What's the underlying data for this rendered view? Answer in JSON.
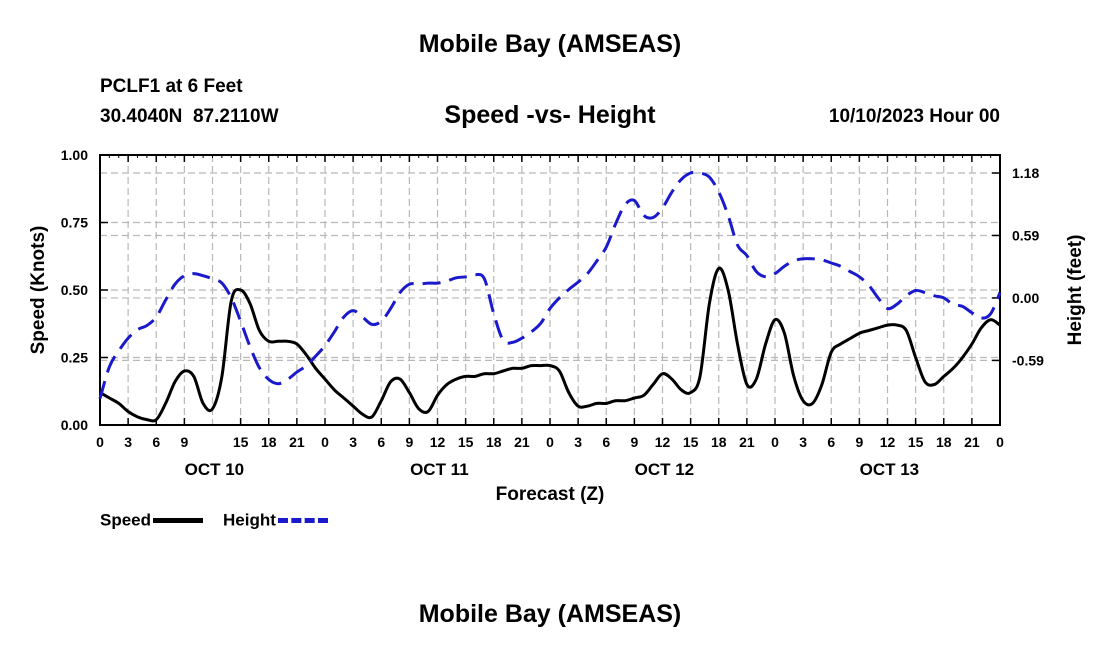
{
  "header": {
    "title": "Mobile Bay (AMSEAS)",
    "station": "PCLF1 at 6 Feet",
    "coords": "30.4040N  87.2110W",
    "subtitle": "Speed -vs- Height",
    "date": "10/10/2023 Hour 00"
  },
  "footer": {
    "title": "Mobile Bay (AMSEAS)"
  },
  "legend": {
    "speed_label": "Speed",
    "height_label": "Height"
  },
  "chart_data": {
    "type": "line",
    "title": "Speed -vs- Height",
    "xlabel": "Forecast (Z)",
    "ylabel": "Speed (Knots)",
    "y2label": "Height (feet)",
    "xlim": [
      0,
      96
    ],
    "ylim": [
      0,
      1.0
    ],
    "y2lim": [
      -1.2,
      1.35
    ],
    "grid": true,
    "x_ticks": [
      0,
      3,
      6,
      9,
      12,
      15,
      18,
      21,
      24,
      27,
      30,
      33,
      36,
      39,
      42,
      45,
      48,
      51,
      54,
      57,
      60,
      63,
      66,
      69,
      72,
      75,
      78,
      81,
      84,
      87,
      90,
      93,
      96
    ],
    "x_tick_labels": [
      "0",
      "3",
      "6",
      "9",
      "15",
      "18",
      "21",
      "0",
      "3",
      "6",
      "9",
      "12",
      "15",
      "18",
      "21",
      "0",
      "3",
      "6",
      "9",
      "12",
      "15",
      "18",
      "21",
      "0",
      "3",
      "6",
      "9",
      "12",
      "15",
      "18",
      "21",
      "0"
    ],
    "x_tick_positions": [
      0,
      3,
      6,
      9,
      15,
      18,
      21,
      24,
      27,
      30,
      33,
      36,
      39,
      42,
      45,
      48,
      51,
      54,
      57,
      60,
      63,
      66,
      69,
      72,
      75,
      78,
      81,
      84,
      87,
      90,
      93,
      96
    ],
    "day_labels": [
      {
        "label": "OCT 10",
        "hour": 9
      },
      {
        "label": "OCT 11",
        "hour": 33
      },
      {
        "label": "OCT 12",
        "hour": 57
      },
      {
        "label": "OCT 13",
        "hour": 81
      }
    ],
    "y_ticks": [
      0,
      0.25,
      0.5,
      0.75,
      1.0
    ],
    "y_tick_labels": [
      "0.00",
      "0.25",
      "0.50",
      "0.75",
      "1.00"
    ],
    "y2_ticks": [
      1.18,
      0.59,
      0.0,
      -0.59
    ],
    "y2_tick_labels": [
      "1.18",
      "0.59",
      "0.00",
      "-0.59"
    ],
    "series": [
      {
        "name": "Speed",
        "axis": "left",
        "color": "#000000",
        "style": "solid",
        "x": [
          0,
          1,
          2,
          3,
          4,
          5,
          6,
          7,
          8,
          9,
          10,
          11,
          12,
          13,
          14,
          15,
          16,
          17,
          18,
          19,
          20,
          21,
          22,
          23,
          24,
          25,
          26,
          27,
          28,
          29,
          30,
          31,
          32,
          33,
          34,
          35,
          36,
          37,
          38,
          39,
          40,
          41,
          42,
          43,
          44,
          45,
          46,
          47,
          48,
          49,
          50,
          51,
          52,
          53,
          54,
          55,
          56,
          57,
          58,
          59,
          60,
          61,
          62,
          63,
          64,
          65,
          66,
          67,
          68,
          69,
          70,
          71,
          72,
          73,
          74,
          75,
          76,
          77,
          78,
          79,
          80,
          81,
          82,
          83,
          84,
          85,
          86,
          87,
          88,
          89,
          90,
          91,
          92,
          93,
          94,
          95,
          96
        ],
        "values": [
          0.12,
          0.1,
          0.08,
          0.05,
          0.03,
          0.02,
          0.02,
          0.08,
          0.16,
          0.2,
          0.18,
          0.08,
          0.06,
          0.18,
          0.46,
          0.5,
          0.45,
          0.35,
          0.31,
          0.31,
          0.31,
          0.3,
          0.26,
          0.21,
          0.17,
          0.13,
          0.1,
          0.07,
          0.04,
          0.03,
          0.09,
          0.16,
          0.17,
          0.12,
          0.06,
          0.05,
          0.11,
          0.15,
          0.17,
          0.18,
          0.18,
          0.19,
          0.19,
          0.2,
          0.21,
          0.21,
          0.22,
          0.22,
          0.22,
          0.2,
          0.12,
          0.07,
          0.07,
          0.08,
          0.08,
          0.09,
          0.09,
          0.1,
          0.11,
          0.15,
          0.19,
          0.17,
          0.13,
          0.12,
          0.18,
          0.45,
          0.58,
          0.5,
          0.3,
          0.15,
          0.17,
          0.3,
          0.39,
          0.34,
          0.18,
          0.09,
          0.08,
          0.15,
          0.27,
          0.3,
          0.32,
          0.34,
          0.35,
          0.36,
          0.37,
          0.37,
          0.35,
          0.25,
          0.16,
          0.15,
          0.18,
          0.21,
          0.25,
          0.3,
          0.36,
          0.39,
          0.37
        ]
      },
      {
        "name": "Height",
        "axis": "right",
        "color": "#1a1acc",
        "style": "dashed",
        "x": [
          0,
          1,
          2,
          3,
          4,
          5,
          6,
          7,
          8,
          9,
          10,
          11,
          12,
          13,
          14,
          15,
          16,
          17,
          18,
          19,
          20,
          21,
          22,
          23,
          24,
          25,
          26,
          27,
          28,
          29,
          30,
          31,
          32,
          33,
          34,
          35,
          36,
          37,
          38,
          39,
          40,
          41,
          42,
          43,
          44,
          45,
          46,
          47,
          48,
          49,
          50,
          51,
          52,
          53,
          54,
          55,
          56,
          57,
          58,
          59,
          60,
          61,
          62,
          63,
          64,
          65,
          66,
          67,
          68,
          69,
          70,
          71,
          72,
          73,
          74,
          75,
          76,
          77,
          78,
          79,
          80,
          81,
          82,
          83,
          84,
          85,
          86,
          87,
          88,
          89,
          90,
          91,
          92,
          93,
          94,
          95,
          96
        ],
        "values": [
          -0.95,
          -0.65,
          -0.5,
          -0.38,
          -0.3,
          -0.26,
          -0.18,
          -0.02,
          0.13,
          0.21,
          0.23,
          0.21,
          0.18,
          0.14,
          0.0,
          -0.22,
          -0.46,
          -0.66,
          -0.77,
          -0.81,
          -0.77,
          -0.7,
          -0.64,
          -0.55,
          -0.45,
          -0.32,
          -0.18,
          -0.12,
          -0.18,
          -0.25,
          -0.22,
          -0.1,
          0.05,
          0.13,
          0.13,
          0.14,
          0.14,
          0.16,
          0.19,
          0.2,
          0.22,
          0.18,
          -0.15,
          -0.4,
          -0.42,
          -0.38,
          -0.32,
          -0.24,
          -0.1,
          0.0,
          0.08,
          0.15,
          0.23,
          0.35,
          0.48,
          0.7,
          0.88,
          0.92,
          0.78,
          0.76,
          0.85,
          1.0,
          1.12,
          1.18,
          1.18,
          1.14,
          1.0,
          0.78,
          0.5,
          0.4,
          0.25,
          0.2,
          0.23,
          0.3,
          0.35,
          0.37,
          0.37,
          0.36,
          0.33,
          0.3,
          0.25,
          0.2,
          0.12,
          0.0,
          -0.1,
          -0.06,
          0.02,
          0.07,
          0.05,
          0.02,
          0.0,
          -0.06,
          -0.08,
          -0.14,
          -0.19,
          -0.15,
          0.05
        ]
      }
    ]
  }
}
